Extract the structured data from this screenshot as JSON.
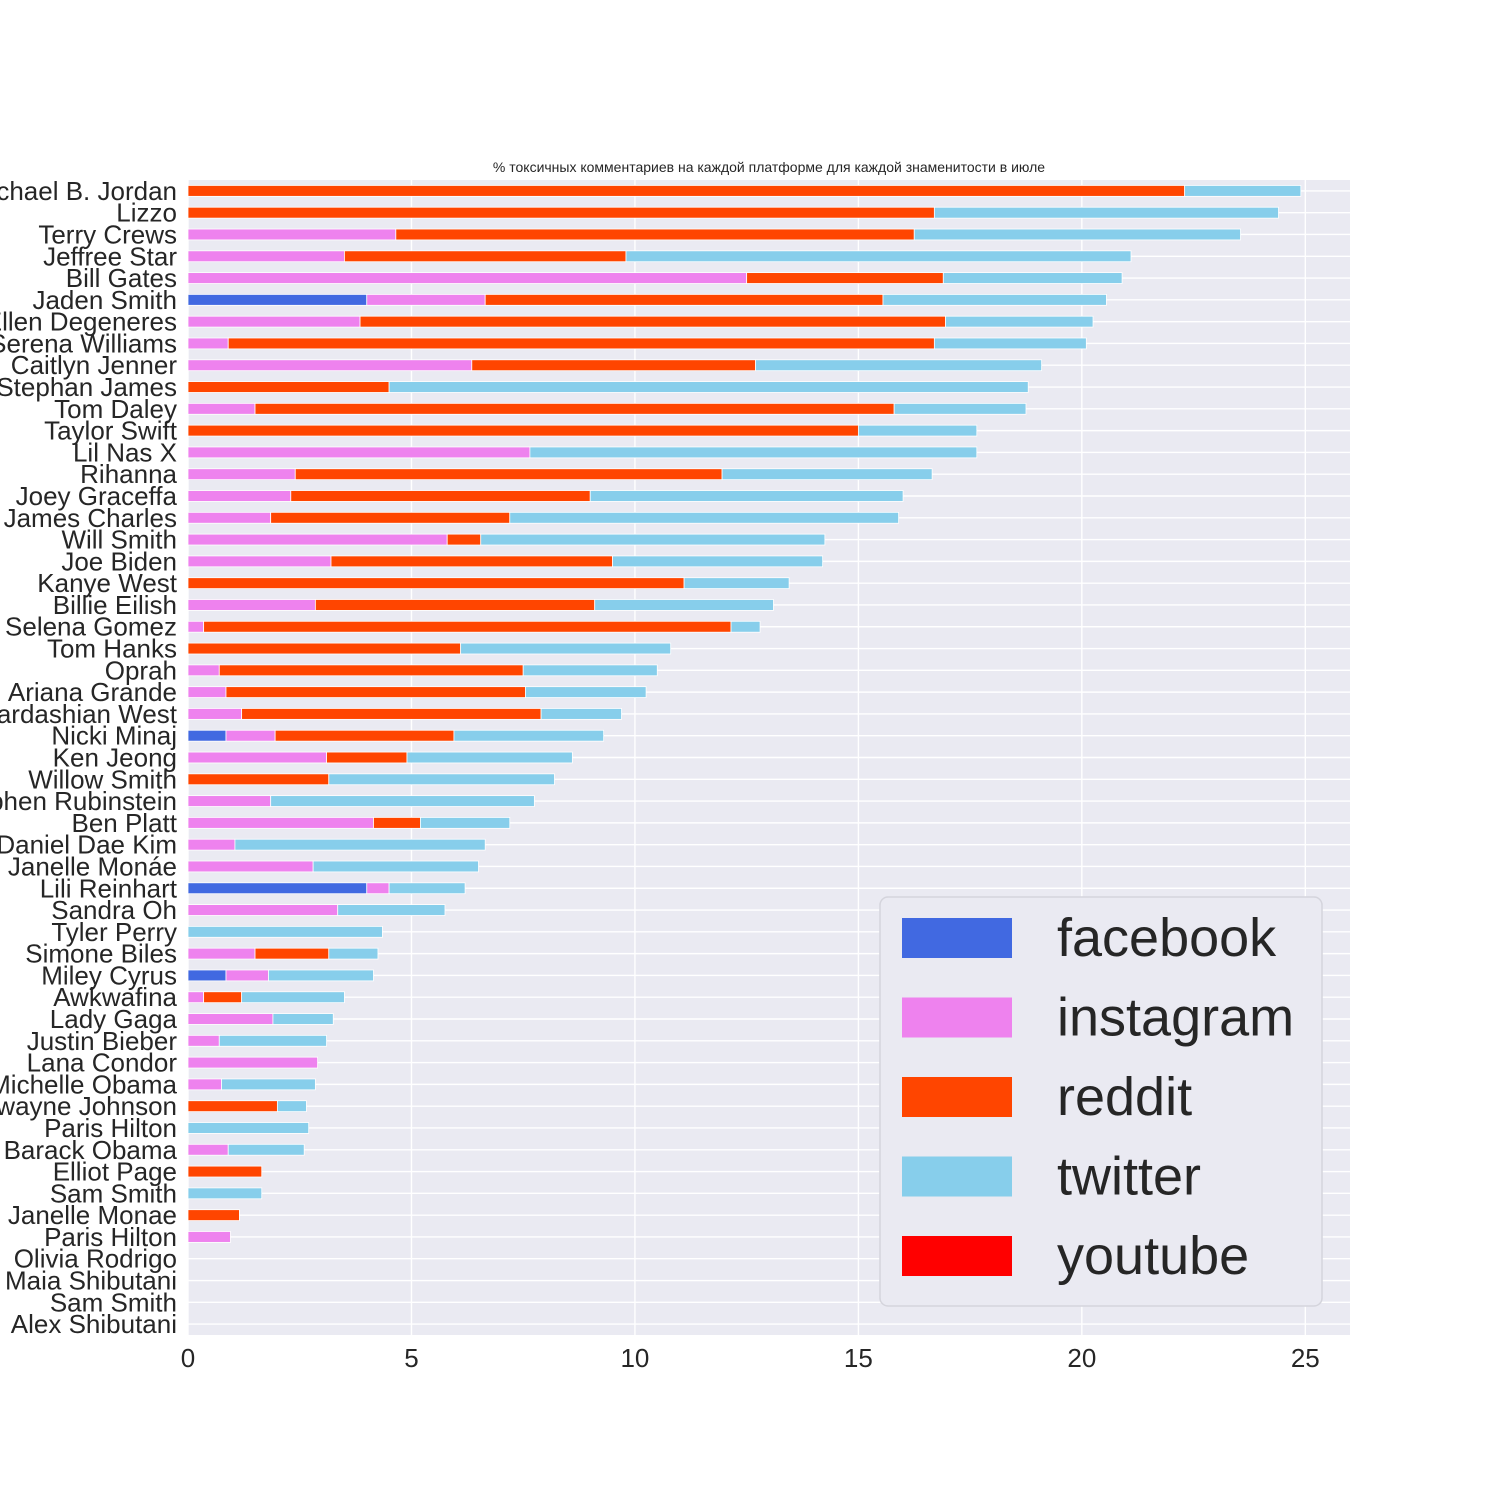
{
  "chart_data": {
    "type": "bar",
    "orientation": "horizontal",
    "stacked": true,
    "title": "% токсичных комментариев на каждой платформе для каждой знаменитости в июле",
    "xlabel": "",
    "ylabel": "",
    "xlim": [
      0,
      26
    ],
    "xticks": [
      "0",
      "5",
      "10",
      "15",
      "20",
      "25"
    ],
    "grid": true,
    "legend_position": "bottom-right",
    "categories": [
      "Michael B. Jordan",
      "Lizzo",
      "Terry Crews",
      "Jeffree Star",
      "Bill Gates",
      "Jaden Smith",
      "Ellen Degeneres",
      "Serena Williams",
      "Caitlyn Jenner",
      "Stephan James",
      "Tom Daley",
      "Taylor Swift",
      "Lil Nas X",
      "Rihanna",
      "Joey Graceffa",
      "James Charles",
      "Will Smith",
      "Joe Biden",
      "Kanye West",
      "Billie Eilish",
      "Selena Gomez",
      "Tom Hanks",
      "Oprah",
      "Ariana Grande",
      "Kim Kardashian West",
      "Nicki Minaj",
      "Ken Jeong",
      "Willow Smith",
      "Stephen Rubinstein",
      "Ben Platt",
      "Daniel Dae Kim",
      "Janelle Monáe",
      "Lili Reinhart",
      "Sandra Oh",
      "Tyler Perry",
      "Simone Biles",
      "Miley Cyrus",
      "Awkwafina",
      "Lady Gaga",
      "Justin Bieber",
      "Lana Condor",
      "Michelle Obama",
      "Dwayne Johnson",
      "Paris Hilton ",
      "Barack Obama",
      "Elliot Page",
      "Sam Smith ",
      "Janelle Monae",
      "Paris Hilton",
      "Olivia Rodrigo",
      "Maia Shibutani",
      "Sam Smith",
      "Alex Shibutani"
    ],
    "series": [
      {
        "name": "facebook",
        "color": "#4169E1",
        "values": [
          0,
          0,
          0,
          0,
          0,
          4.0,
          0,
          0,
          0,
          0,
          0,
          0,
          0,
          0,
          0,
          0,
          0,
          0,
          0,
          0,
          0,
          0,
          0,
          0,
          0,
          0.85,
          0,
          0,
          0,
          0,
          0,
          0,
          4.0,
          0,
          0,
          0,
          0.85,
          0,
          0,
          0,
          0,
          0,
          0,
          0,
          0,
          0,
          0,
          0,
          0,
          0,
          0,
          0,
          0
        ]
      },
      {
        "name": "instagram",
        "color": "#EE82EE",
        "values": [
          0,
          0,
          4.65,
          3.5,
          12.5,
          2.65,
          3.85,
          0.9,
          6.35,
          0,
          1.5,
          0,
          7.65,
          2.4,
          2.3,
          1.85,
          5.8,
          3.2,
          0,
          2.85,
          0.35,
          0,
          0.7,
          0.85,
          1.2,
          1.1,
          3.1,
          0,
          1.85,
          4.15,
          1.05,
          2.8,
          0.5,
          3.35,
          0,
          1.5,
          0.95,
          0.35,
          1.9,
          0.7,
          2.9,
          0.75,
          0,
          0,
          0.9,
          0,
          0,
          0,
          0.95,
          0,
          0,
          0,
          0
        ]
      },
      {
        "name": "reddit",
        "color": "#FF4500",
        "values": [
          22.3,
          16.7,
          11.6,
          6.3,
          4.4,
          8.9,
          13.1,
          15.8,
          6.35,
          4.5,
          14.3,
          15.0,
          0,
          9.55,
          6.7,
          5.35,
          0.75,
          6.3,
          11.1,
          6.25,
          11.8,
          6.1,
          6.8,
          6.7,
          6.7,
          4.0,
          1.8,
          3.15,
          0,
          1.05,
          0,
          0,
          0,
          0,
          0,
          1.65,
          0,
          0.85,
          0,
          0,
          0,
          0,
          2.0,
          0,
          0,
          1.65,
          0,
          1.15,
          0,
          0,
          0,
          0,
          0
        ]
      },
      {
        "name": "twitter",
        "color": "#87CEEB",
        "values": [
          2.6,
          7.7,
          7.3,
          11.3,
          4.0,
          5.0,
          3.3,
          3.4,
          6.4,
          14.3,
          2.95,
          2.65,
          10.0,
          4.7,
          7.0,
          8.7,
          7.7,
          4.7,
          2.35,
          4.0,
          0.65,
          4.7,
          3.0,
          2.7,
          1.8,
          3.35,
          3.7,
          5.05,
          5.9,
          2.0,
          5.6,
          3.7,
          1.7,
          2.4,
          4.35,
          1.1,
          2.35,
          2.3,
          1.35,
          2.4,
          0,
          2.1,
          0.65,
          2.7,
          1.7,
          0,
          1.65,
          0,
          0,
          0,
          0,
          0,
          0
        ]
      },
      {
        "name": "youtube",
        "color": "#FF0000",
        "values": [
          0,
          0,
          0,
          0,
          0,
          0,
          0,
          0,
          0,
          0,
          0,
          0,
          0,
          0,
          0,
          0,
          0,
          0,
          0,
          0,
          0,
          0,
          0,
          0,
          0,
          0,
          0,
          0,
          0,
          0,
          0,
          0,
          0,
          0,
          0,
          0,
          0,
          0,
          0,
          0,
          0,
          0,
          0,
          0,
          0,
          0,
          0,
          0,
          0,
          0,
          0,
          0,
          0
        ]
      }
    ]
  }
}
